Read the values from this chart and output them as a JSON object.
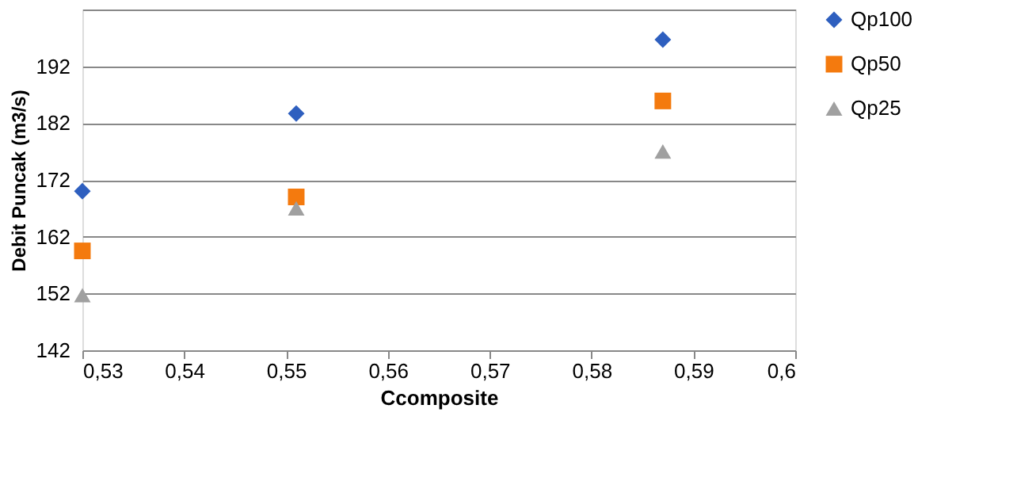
{
  "chart_data": {
    "type": "scatter",
    "xlabel": "Ccomposite",
    "ylabel": "Debit Puncak (m3/s)",
    "xlim": [
      0.53,
      0.6
    ],
    "xticks": [
      {
        "value": 0.53,
        "label": "0,53"
      },
      {
        "value": 0.54,
        "label": "0,54"
      },
      {
        "value": 0.55,
        "label": "0,55"
      },
      {
        "value": 0.56,
        "label": "0,56"
      },
      {
        "value": 0.57,
        "label": "0,57"
      },
      {
        "value": 0.58,
        "label": "0,58"
      },
      {
        "value": 0.59,
        "label": "0,59"
      },
      {
        "value": 0.6,
        "label": "0,6"
      }
    ],
    "ylim": [
      142,
      202
    ],
    "yticks": [
      142,
      152,
      162,
      172,
      182,
      192,
      {
        "value": 202,
        "label": null
      }
    ],
    "grid": "y",
    "legend": "right",
    "x": [
      0.53,
      0.551,
      0.587
    ],
    "series": [
      {
        "name": "Qp100",
        "color": "#2e5fbf",
        "marker": "diamond",
        "values": [
          170,
          183.7,
          196.7
        ]
      },
      {
        "name": "Qp50",
        "color": "#f47a0e",
        "marker": "square",
        "values": [
          159.5,
          169,
          185.9
        ]
      },
      {
        "name": "Qp25",
        "color": "#a0a0a0",
        "marker": "triangle",
        "values": [
          151.7,
          167,
          177
        ]
      }
    ]
  }
}
